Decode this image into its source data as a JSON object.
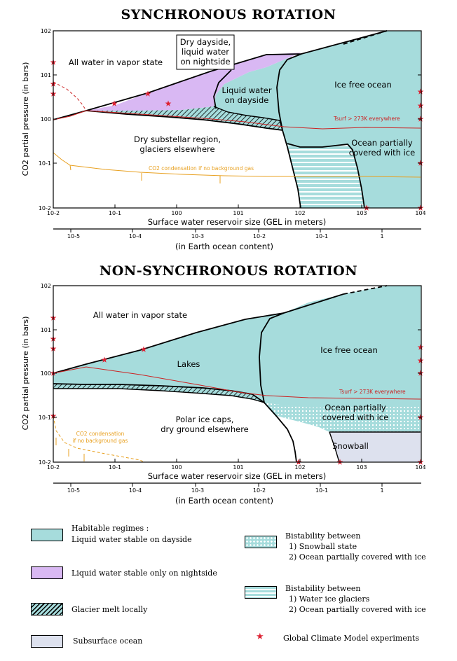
{
  "colors": {
    "habitable": "#a6dcdc",
    "nightside": "#d9b8f3",
    "subsurface": "#dde1ee",
    "curve_red": "#cc2222",
    "curve_orange": "#e8a020",
    "star": "#dd2233"
  },
  "panel1": {
    "title": "SYNCHRONOUS ROTATION",
    "ylabel": "CO2 partial pressure (in bars)",
    "xlabel": "Surface water reservoir size (GEL in meters)",
    "x2label": "(in Earth ocean content)",
    "yticks": [
      "10-2",
      "10-1",
      "100",
      "101",
      "102"
    ],
    "xticks": [
      "10-2",
      "10-1",
      "100",
      "101",
      "102",
      "103",
      "104"
    ],
    "x2ticks": [
      "10-5",
      "10-4",
      "10-3",
      "10-2",
      "10-1",
      "1"
    ],
    "regions": {
      "vapor": "All water in vapor state",
      "dry_dayside_1": "Dry dayside,",
      "dry_dayside_2": "liquid water",
      "dry_dayside_3": "on nightside",
      "liquid_dayside_1": "Liquid water",
      "liquid_dayside_2": "on dayside",
      "ice_free": "Ice free ocean",
      "tsurf": "Tsurf > 273K everywhere",
      "dry_substellar_1": "Dry substellar region,",
      "dry_substellar_2": "glaciers elsewhere",
      "ocean_partial_1": "Ocean partially",
      "ocean_partial_2": "covered with ice",
      "co2_condensation": "CO2 condensation if no background gas"
    }
  },
  "panel2": {
    "title": "NON-SYNCHRONOUS ROTATION",
    "ylabel": "CO2 partial pressure (in bars)",
    "xlabel": "Surface water reservoir size (GEL in meters)",
    "x2label": "(in Earth ocean content)",
    "yticks": [
      "10-2",
      "10-1",
      "100",
      "101",
      "102"
    ],
    "xticks": [
      "10-2",
      "10-1",
      "100",
      "101",
      "102",
      "103",
      "104"
    ],
    "x2ticks": [
      "10-5",
      "10-4",
      "10-3",
      "10-2",
      "10-1",
      "1"
    ],
    "regions": {
      "vapor": "All water in vapor state",
      "lakes": "Lakes",
      "ice_free": "Ice free ocean",
      "tsurf": "Tsurf > 273K everywhere",
      "polar_1": "Polar ice caps,",
      "polar_2": "dry ground elsewhere",
      "ocean_partial_1": "Ocean partially",
      "ocean_partial_2": "covered with ice",
      "snowball": "Snowball",
      "co2_condensation_1": "CO2 condensation",
      "co2_condensation_2": "if no background gas"
    }
  },
  "legend": {
    "habitable_1": "Habitable regimes :",
    "habitable_2": "Liquid water stable on dayside",
    "nightside": "Liquid water stable only on nightside",
    "glacier": "Glacier melt locally",
    "subsurface": "Subsurface ocean",
    "bistab1_title": "Bistability between",
    "bistab1_a": "1) Snowball state",
    "bistab1_b": "2) Ocean partially covered with ice",
    "bistab2_title": "Bistability between",
    "bistab2_a": "1) Water ice glaciers",
    "bistab2_b": "2) Ocean partially covered with ice",
    "gcm": "Global Climate Model experiments"
  }
}
